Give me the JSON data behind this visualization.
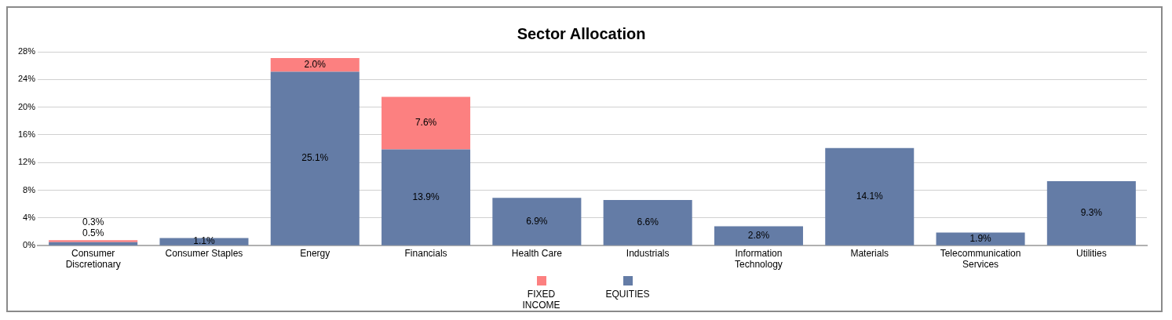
{
  "chart_data": {
    "type": "bar",
    "title": "Sector Allocation",
    "stacked": true,
    "categories": [
      "Consumer Discretionary",
      "Consumer Staples",
      "Energy",
      "Financials",
      "Health Care",
      "Industrials",
      "Information Technology",
      "Materials",
      "Telecommunication Services",
      "Utilities"
    ],
    "series": [
      {
        "name": "EQUITIES",
        "color": "#647ca6",
        "values": [
          0.5,
          1.1,
          25.1,
          13.9,
          6.9,
          6.6,
          2.8,
          14.1,
          1.9,
          9.3
        ],
        "value_labels": [
          "0.5%",
          "1.1%",
          "25.1%",
          "13.9%",
          "6.9%",
          "6.6%",
          "2.8%",
          "14.1%",
          "1.9%",
          "9.3%"
        ]
      },
      {
        "name": "FIXED INCOME",
        "color": "#fc8080",
        "values": [
          0.3,
          null,
          2.0,
          7.6,
          null,
          null,
          null,
          null,
          null,
          null
        ],
        "value_labels": [
          "0.3%",
          null,
          "2.0%",
          "7.6%",
          null,
          null,
          null,
          null,
          null,
          null
        ]
      }
    ],
    "ylim": [
      0,
      28
    ],
    "yticks": [
      {
        "value": 0,
        "label": "0%"
      },
      {
        "value": 4,
        "label": "4%"
      },
      {
        "value": 8,
        "label": "8%"
      },
      {
        "value": 12,
        "label": "12%"
      },
      {
        "value": 16,
        "label": "16%"
      },
      {
        "value": 20,
        "label": "20%"
      },
      {
        "value": 24,
        "label": "24%"
      },
      {
        "value": 28,
        "label": "28%"
      }
    ],
    "grid": "y",
    "legend": "bottom"
  }
}
